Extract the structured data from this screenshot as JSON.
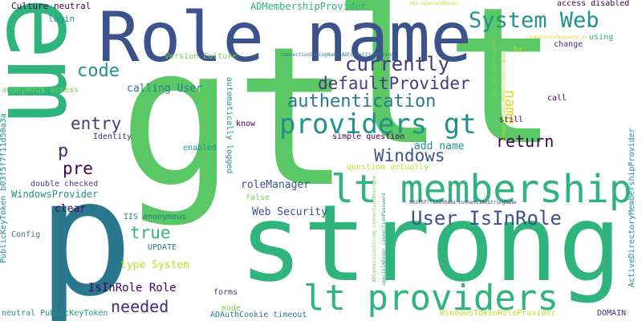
{
  "words": {
    "gt": "gt",
    "lt": "lt",
    "strong": "strong",
    "p_big": "p",
    "em": "em",
    "role_name": "Role name",
    "lt_membership": "lt membership",
    "lt_providers": "lt providers",
    "providers_gt": "providers gt",
    "system_web": "System Web",
    "user_isinrole": "User IsInRole",
    "authentication": "authentication",
    "defaultprovider": "defaultProvider",
    "currently": "currently",
    "windows": "Windows",
    "code": "code",
    "entry": "entry",
    "pre": "pre",
    "p_small": "p",
    "true": "true",
    "needed": "needed",
    "return": "return",
    "name": "name",
    "isinrole_role": "IsInRole Role",
    "type_system": "type System",
    "clear": "clear",
    "web_security": "Web Security",
    "rolemanager": "roleManager",
    "add_name": "add name",
    "calling_user": "calling User",
    "windowsprovider": "WindowsProvider",
    "admembershipprovider": "ADMembershipProvider",
    "culture_neutral": "Culture neutral",
    "login": "login",
    "access_disabled": "access disabled",
    "using": "using",
    "change": "change",
    "br": "br",
    "still": "still",
    "call": "call",
    "version_culture": "Version Culture",
    "anonymous_access": "anonymous access",
    "identity": "Identity",
    "double_checked": "double checked",
    "iis_anonymous": "IIS anonymous",
    "update": "UPDATE",
    "config": "Config",
    "false": "false",
    "forms": "forms",
    "mode": "mode",
    "adauthcookie_timeout": "ADAuthCookie timeout",
    "neutral_publickeytoken": "neutral PublicKeyToken",
    "windowstokenroleprovider": "WindowsTokenRoleProvider",
    "domain": "DOMAIN",
    "know": "know",
    "enabled": "enabled",
    "simple_question": "simple question",
    "question_actually": "question actually",
    "b03f_token": "b03f5f7f11d50a3a connectionStringName",
    "xxx_specialaduser": "XXX specialADuser",
    "connectionstringname_adconnectionstring": "connectionStringName ADConnectionString",
    "connectionpassword_xx": "connectionPassword xx",
    "automatically_logged": "automatically logged",
    "publickeytoken_b03f": "PublicKeyToken b03f5f7f11d50a3a",
    "activedirectorymembershipprovider": "ActiveDirectoryMembershipProvider",
    "adconnectionstring_username": "ADConnectionString connectionUsername",
    "specialaduser_password": "specialADuser connectionPassword",
    "connectionusername_specialaduser": "connectionUsername specialADuser",
    "connectionstring_ldap": "connectionString LDAP"
  },
  "colors": {
    "bright_green": "#5ac864",
    "green": "#2fb47c",
    "teal": "#21918c",
    "teal_blue": "#2a788e",
    "navy": "#3b528b",
    "indigo": "#443983",
    "purple": "#440154",
    "dark_purple": "#472d7b",
    "lime": "#7ad151",
    "yellow": "#c2df23",
    "gold": "#e4d41d"
  }
}
